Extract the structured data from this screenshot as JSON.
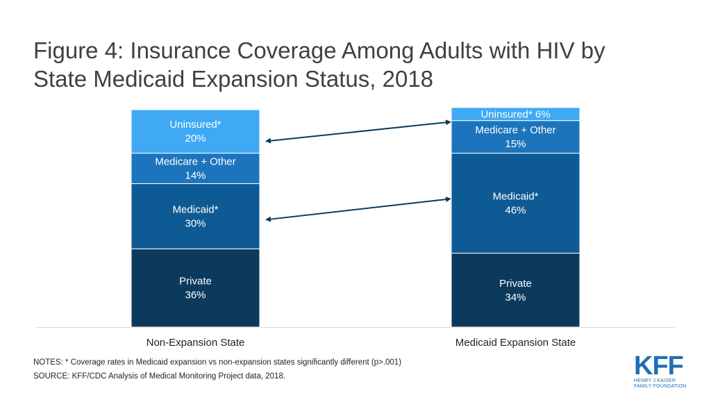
{
  "title_lines": [
    "Figure 4: Insurance Coverage Among Adults with HIV by",
    "State Medicaid Expansion Status, 2018"
  ],
  "notes": "NOTES: * Coverage rates in Medicaid expansion vs non-expansion states significantly different (p>.001)",
  "source": "SOURCE: KFF/CDC Analysis of Medical Monitoring Project data, 2018.",
  "logo": {
    "mark": "KFF",
    "sub_line1": "HENRY J KAISER",
    "sub_line2": "FAMILY FOUNDATION"
  },
  "colors": {
    "uninsured": "#3fa9f5",
    "medicare_other": "#1c75bc",
    "medicaid": "#0e5a94",
    "private": "#0b3a5c",
    "arrow": "#0b3a5c"
  },
  "chart_data": {
    "type": "bar",
    "stacked": true,
    "categories": [
      "Non-Expansion State",
      "Medicaid Expansion State"
    ],
    "ylim": [
      0,
      100
    ],
    "series": [
      {
        "key": "private",
        "values": [
          36,
          34
        ],
        "labels": [
          "Private\n36%",
          "Private\n34%"
        ]
      },
      {
        "key": "medicaid",
        "values": [
          30,
          46
        ],
        "labels": [
          "Medicaid*\n30%",
          "Medicaid*\n46%"
        ]
      },
      {
        "key": "medicare_other",
        "values": [
          14,
          15
        ],
        "labels": [
          "Medicare + Other\n14%",
          "Medicare + Other\n15%"
        ]
      },
      {
        "key": "uninsured",
        "values": [
          20,
          6
        ],
        "labels": [
          "Uninsured*\n20%",
          "Uninsured* 6%"
        ]
      }
    ],
    "arrows": [
      {
        "from_series": "uninsured",
        "note": "compare uninsured"
      },
      {
        "from_series": "medicaid",
        "note": "compare medicaid"
      }
    ],
    "grid": false
  }
}
